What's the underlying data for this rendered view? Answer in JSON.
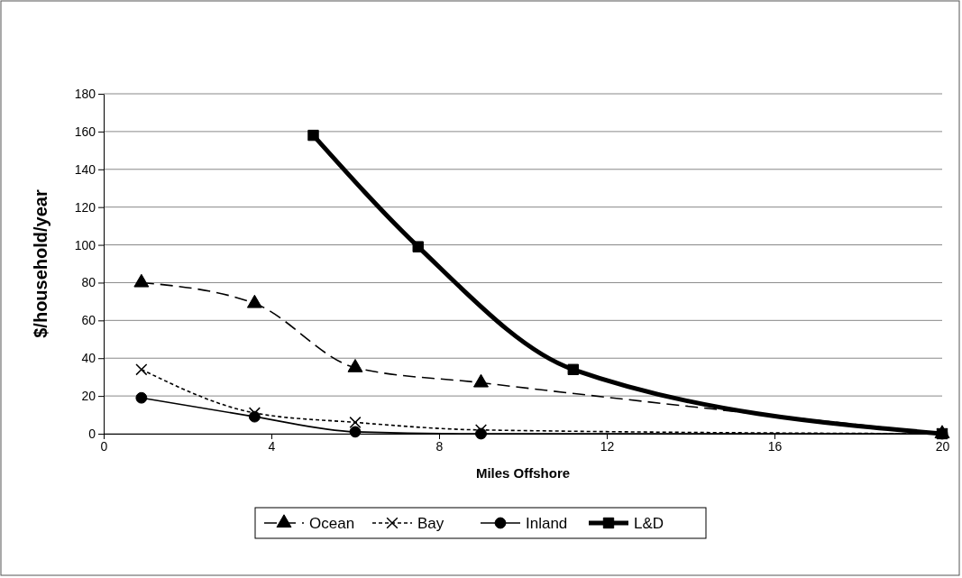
{
  "chart_data": {
    "type": "line",
    "xlabel": "Miles Offshore",
    "ylabel": "$/household/year",
    "xlim": [
      0,
      20
    ],
    "xticks": [
      0,
      4,
      8,
      12,
      16,
      20
    ],
    "ylim": [
      0,
      180
    ],
    "yticks": [
      0,
      20,
      40,
      60,
      80,
      100,
      120,
      140,
      160,
      180
    ],
    "grid": "y",
    "legend": "bottom",
    "series": [
      {
        "name": "Ocean",
        "color": "#000000",
        "marker": "triangle",
        "line_style": "dashed",
        "x": [
          0.9,
          3.6,
          6,
          9,
          20
        ],
        "values": [
          80,
          69,
          35,
          27,
          0
        ]
      },
      {
        "name": "Bay",
        "color": "#000000",
        "marker": "cross",
        "line_style": "dotted",
        "x": [
          0.9,
          3.6,
          6,
          9,
          20
        ],
        "values": [
          34,
          11,
          6,
          2,
          0
        ]
      },
      {
        "name": "Inland",
        "color": "#000000",
        "marker": "circle",
        "line_style": "solid",
        "x": [
          0.9,
          3.6,
          6,
          9,
          20
        ],
        "values": [
          19,
          9,
          1,
          0,
          0
        ]
      },
      {
        "name": "L&D",
        "color": "#000000",
        "marker": "square",
        "line_style": "solid",
        "x": [
          5,
          7.5,
          11.2,
          20
        ],
        "values": [
          158,
          99,
          34,
          0
        ]
      }
    ]
  }
}
